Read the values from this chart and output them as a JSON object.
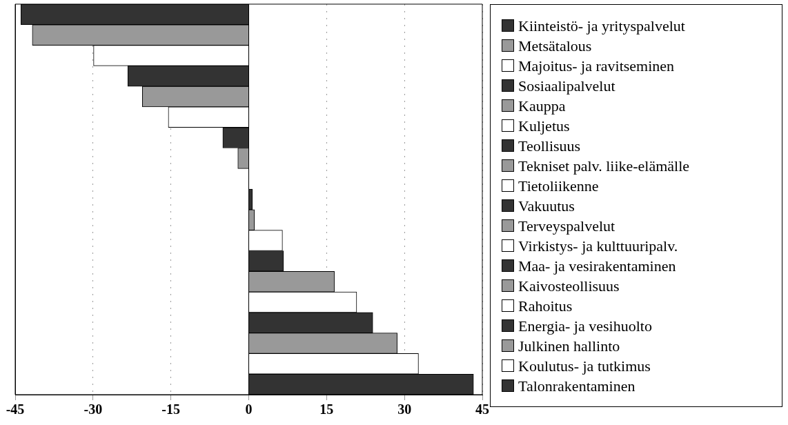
{
  "chart_data": {
    "type": "bar",
    "orientation": "horizontal",
    "categories": [
      null,
      null,
      null,
      null,
      null,
      null,
      null,
      null,
      null,
      null,
      null,
      null,
      null,
      null,
      null,
      null,
      null,
      null,
      null
    ],
    "series": [
      {
        "name": "Kiinteistö- ja yrityspalvelut",
        "color": "#333333",
        "values": [
          -43.9,
          null,
          null,
          null,
          null,
          null,
          null,
          null,
          null,
          null,
          null,
          null,
          null,
          null,
          null,
          null,
          null,
          null,
          null
        ]
      },
      {
        "name": "Metsätalous",
        "color": "#999999",
        "values": [
          null,
          -41.7,
          null,
          null,
          null,
          null,
          null,
          null,
          null,
          null,
          null,
          null,
          null,
          null,
          null,
          null,
          null,
          null,
          null
        ]
      },
      {
        "name": "Majoitus- ja ravitseminen",
        "color": "#ffffff",
        "values": [
          null,
          null,
          -29.9,
          null,
          null,
          null,
          null,
          null,
          null,
          null,
          null,
          null,
          null,
          null,
          null,
          null,
          null,
          null,
          null
        ]
      },
      {
        "name": "Sosiaalipalvelut",
        "color": "#333333",
        "values": [
          null,
          null,
          null,
          -23.3,
          null,
          null,
          null,
          null,
          null,
          null,
          null,
          null,
          null,
          null,
          null,
          null,
          null,
          null,
          null
        ]
      },
      {
        "name": "Kauppa",
        "color": "#999999",
        "values": [
          null,
          null,
          null,
          null,
          -20.5,
          null,
          null,
          null,
          null,
          null,
          null,
          null,
          null,
          null,
          null,
          null,
          null,
          null,
          null
        ]
      },
      {
        "name": "Kuljetus",
        "color": "#ffffff",
        "values": [
          null,
          null,
          null,
          null,
          null,
          -15.5,
          null,
          null,
          null,
          null,
          null,
          null,
          null,
          null,
          null,
          null,
          null,
          null,
          null
        ]
      },
      {
        "name": "Teollisuus",
        "color": "#333333",
        "values": [
          null,
          null,
          null,
          null,
          null,
          null,
          -5.0,
          null,
          null,
          null,
          null,
          null,
          null,
          null,
          null,
          null,
          null,
          null,
          null
        ]
      },
      {
        "name": "Tekniset palv. liike-elämälle",
        "color": "#999999",
        "values": [
          null,
          null,
          null,
          null,
          null,
          null,
          null,
          -2.1,
          null,
          null,
          null,
          null,
          null,
          null,
          null,
          null,
          null,
          null,
          null
        ]
      },
      {
        "name": "Tietoliikenne",
        "color": "#ffffff",
        "values": [
          null,
          null,
          null,
          null,
          null,
          null,
          null,
          null,
          0,
          null,
          null,
          null,
          null,
          null,
          null,
          null,
          null,
          null,
          null
        ]
      },
      {
        "name": "Vakuutus",
        "color": "#333333",
        "values": [
          null,
          null,
          null,
          null,
          null,
          null,
          null,
          null,
          null,
          0.7,
          null,
          null,
          null,
          null,
          null,
          null,
          null,
          null,
          null
        ]
      },
      {
        "name": "Terveyspalvelut",
        "color": "#999999",
        "values": [
          null,
          null,
          null,
          null,
          null,
          null,
          null,
          null,
          null,
          null,
          1.1,
          null,
          null,
          null,
          null,
          null,
          null,
          null,
          null
        ]
      },
      {
        "name": "Virkistys- ja kulttuuripalv.",
        "color": "#ffffff",
        "values": [
          null,
          null,
          null,
          null,
          null,
          null,
          null,
          null,
          null,
          null,
          null,
          6.5,
          null,
          null,
          null,
          null,
          null,
          null,
          null
        ]
      },
      {
        "name": "Maa- ja vesirakentaminen",
        "color": "#333333",
        "values": [
          null,
          null,
          null,
          null,
          null,
          null,
          null,
          null,
          null,
          null,
          null,
          null,
          6.7,
          null,
          null,
          null,
          null,
          null,
          null
        ]
      },
      {
        "name": "Kaivosteollisuus",
        "color": "#999999",
        "values": [
          null,
          null,
          null,
          null,
          null,
          null,
          null,
          null,
          null,
          null,
          null,
          null,
          null,
          16.5,
          null,
          null,
          null,
          null,
          null
        ]
      },
      {
        "name": "Rahoitus",
        "color": "#ffffff",
        "values": [
          null,
          null,
          null,
          null,
          null,
          null,
          null,
          null,
          null,
          null,
          null,
          null,
          null,
          null,
          20.8,
          null,
          null,
          null,
          null
        ]
      },
      {
        "name": "Energia- ja vesihuolto",
        "color": "#333333",
        "values": [
          null,
          null,
          null,
          null,
          null,
          null,
          null,
          null,
          null,
          null,
          null,
          null,
          null,
          null,
          null,
          23.9,
          null,
          null,
          null
        ]
      },
      {
        "name": "Julkinen hallinto",
        "color": "#999999",
        "values": [
          null,
          null,
          null,
          null,
          null,
          null,
          null,
          null,
          null,
          null,
          null,
          null,
          null,
          null,
          null,
          null,
          28.6,
          null,
          null
        ]
      },
      {
        "name": "Koulutus- ja tutkimus",
        "color": "#ffffff",
        "values": [
          null,
          null,
          null,
          null,
          null,
          null,
          null,
          null,
          null,
          null,
          null,
          null,
          null,
          null,
          null,
          null,
          null,
          32.7,
          null
        ]
      },
      {
        "name": "Talonrakentaminen",
        "color": "#333333",
        "values": [
          null,
          null,
          null,
          null,
          null,
          null,
          null,
          null,
          null,
          null,
          null,
          null,
          null,
          null,
          null,
          null,
          null,
          null,
          43.3
        ]
      }
    ],
    "xlim": [
      -45,
      45
    ],
    "xticks": [
      -45,
      -30,
      -15,
      0,
      15,
      30,
      45
    ],
    "grid": "x",
    "legend": "right",
    "tick_labels": "x"
  }
}
